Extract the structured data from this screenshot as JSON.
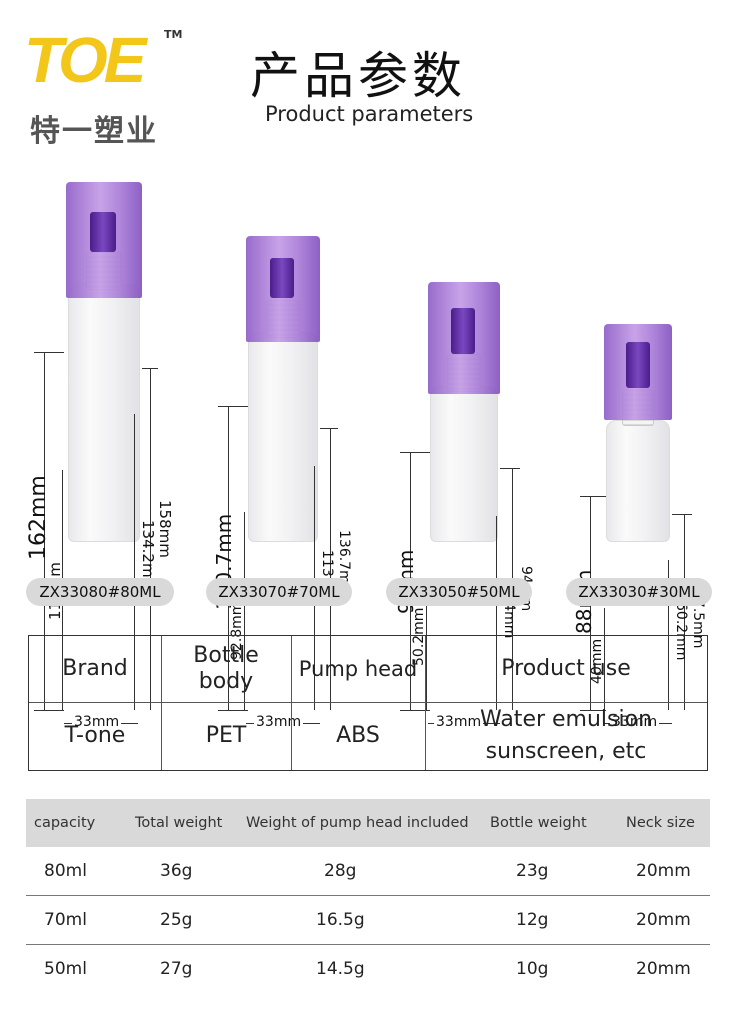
{
  "brand": {
    "logo_mark": "TOE",
    "logo_tm": "TM",
    "logo_cn": "特一塑业"
  },
  "header": {
    "title_cn": "产品参数",
    "title_en": "Product parameters"
  },
  "bottles": [
    {
      "model": "ZX33080#80ML",
      "total_height": "162mm",
      "cap_to_base": "158mm",
      "body_height": "134.2mm",
      "lower_body": "114mm",
      "width": "33mm"
    },
    {
      "model": "ZX33070#70ML",
      "total_height": "140.7mm",
      "cap_to_base": "136.7mm",
      "body_height": "113mm",
      "lower_body": "92.8mm",
      "width": "33mm"
    },
    {
      "model": "ZX33050#50ML",
      "total_height": "98mm",
      "cap_to_base": "94mm",
      "body_height": "70.4mm",
      "lower_body": "50.2mm",
      "width": "33mm"
    },
    {
      "model": "ZX33030#30ML",
      "total_height": "88mm",
      "cap_to_base": "77.5mm",
      "body_height": "60.2mm",
      "lower_body": "40mm",
      "width": "33mm"
    }
  ],
  "material_table": {
    "headers": [
      "Brand",
      "Bottle body",
      "Pump head",
      "Product use"
    ],
    "values": [
      "T-one",
      "PET",
      "ABS",
      "Water emulsion sunscreen, etc"
    ]
  },
  "spec_table": {
    "headers": [
      "capacity",
      "Total weight",
      "Weight of pump head included",
      "Bottle weight",
      "Neck size"
    ],
    "rows": [
      [
        "80ml",
        "36g",
        "28g",
        "23g",
        "20mm"
      ],
      [
        "70ml",
        "25g",
        "16.5g",
        "12g",
        "20mm"
      ],
      [
        "50ml",
        "27g",
        "14.5g",
        "10g",
        "20mm"
      ]
    ]
  },
  "colors": {
    "cap": "#a97dd8",
    "logo": "#f2c71a",
    "pill": "#d9d9d9"
  }
}
